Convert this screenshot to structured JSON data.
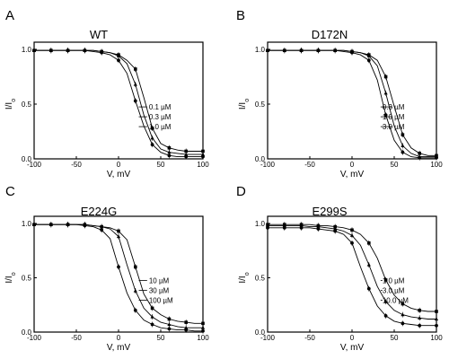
{
  "figure": {
    "panels": [
      {
        "letter": "A",
        "title": "WT",
        "ylabel": "I/I",
        "ylabel_sub": "o",
        "xlabel": "V, mV"
      },
      {
        "letter": "B",
        "title": "D172N",
        "ylabel": "I/I",
        "ylabel_sub": "o",
        "xlabel": "V, mV"
      },
      {
        "letter": "C",
        "title": "E224G",
        "ylabel": "I/I",
        "ylabel_sub": "o",
        "xlabel": "V, mV"
      },
      {
        "letter": "D",
        "title": "E299S",
        "ylabel": "I/I",
        "ylabel_sub": "o",
        "xlabel": "V, mV"
      }
    ]
  },
  "chart_data": [
    {
      "type": "line",
      "panel": "A",
      "title": "WT",
      "xlabel": "V, mV",
      "ylabel": "I/Io",
      "xlim": [
        -100,
        100
      ],
      "ylim": [
        0,
        1.0
      ],
      "xticks": [
        -100,
        -50,
        0,
        50,
        100
      ],
      "yticks": [
        0.0,
        0.5,
        1.0
      ],
      "legend": [
        "0.1 µM",
        "0.3 µM",
        "1.0 µM"
      ],
      "x": [
        -100,
        -90,
        -80,
        -70,
        -60,
        -50,
        -40,
        -30,
        -20,
        -10,
        0,
        10,
        20,
        30,
        40,
        50,
        60,
        70,
        80,
        90,
        100
      ],
      "series": [
        {
          "name": "0.1 µM",
          "values": [
            0.99,
            0.99,
            0.99,
            0.99,
            0.99,
            0.99,
            0.99,
            0.99,
            0.98,
            0.97,
            0.95,
            0.9,
            0.82,
            0.56,
            0.28,
            0.14,
            0.1,
            0.08,
            0.07,
            0.07,
            0.07
          ]
        },
        {
          "name": "0.3 µM",
          "values": [
            0.99,
            0.99,
            0.99,
            0.99,
            0.99,
            0.99,
            0.99,
            0.99,
            0.98,
            0.97,
            0.94,
            0.87,
            0.68,
            0.4,
            0.19,
            0.09,
            0.06,
            0.05,
            0.04,
            0.04,
            0.04
          ]
        },
        {
          "name": "1.0 µM",
          "values": [
            0.99,
            0.99,
            0.99,
            0.99,
            0.99,
            0.99,
            0.99,
            0.98,
            0.97,
            0.95,
            0.9,
            0.78,
            0.53,
            0.3,
            0.13,
            0.06,
            0.03,
            0.02,
            0.02,
            0.02,
            0.02
          ]
        }
      ]
    },
    {
      "type": "line",
      "panel": "B",
      "title": "D172N",
      "xlabel": "V, mV",
      "ylabel": "I/Io",
      "xlim": [
        -100,
        100
      ],
      "ylim": [
        0,
        1.0
      ],
      "xticks": [
        -100,
        -50,
        0,
        50,
        100
      ],
      "yticks": [
        0.0,
        0.5,
        1.0
      ],
      "legend": [
        "0.3 µM",
        "1.0 µM",
        "3.0 µM"
      ],
      "x": [
        -100,
        -90,
        -80,
        -70,
        -60,
        -50,
        -40,
        -30,
        -20,
        -10,
        0,
        10,
        20,
        30,
        40,
        50,
        60,
        70,
        80,
        90,
        100
      ],
      "series": [
        {
          "name": "0.3 µM",
          "values": [
            0.99,
            0.99,
            0.99,
            0.99,
            0.99,
            0.99,
            0.99,
            0.99,
            0.99,
            0.99,
            0.98,
            0.97,
            0.95,
            0.9,
            0.75,
            0.48,
            0.22,
            0.1,
            0.05,
            0.03,
            0.03
          ]
        },
        {
          "name": "1.0 µM",
          "values": [
            0.99,
            0.99,
            0.99,
            0.99,
            0.99,
            0.99,
            0.99,
            0.99,
            0.99,
            0.99,
            0.98,
            0.97,
            0.94,
            0.85,
            0.6,
            0.3,
            0.12,
            0.05,
            0.02,
            0.02,
            0.02
          ]
        },
        {
          "name": "3.0 µM",
          "values": [
            0.99,
            0.99,
            0.99,
            0.99,
            0.99,
            0.99,
            0.99,
            0.99,
            0.99,
            0.98,
            0.97,
            0.95,
            0.9,
            0.72,
            0.4,
            0.17,
            0.06,
            0.02,
            0.01,
            0.01,
            0.01
          ]
        }
      ]
    },
    {
      "type": "line",
      "panel": "C",
      "title": "E224G",
      "xlabel": "V, mV",
      "ylabel": "I/Io",
      "xlim": [
        -100,
        100
      ],
      "ylim": [
        0,
        1.0
      ],
      "xticks": [
        -100,
        -50,
        0,
        50,
        100
      ],
      "yticks": [
        0.0,
        0.5,
        1.0
      ],
      "legend": [
        "10 µM",
        "30 µM",
        "100 µM"
      ],
      "x": [
        -100,
        -90,
        -80,
        -70,
        -60,
        -50,
        -40,
        -30,
        -20,
        -10,
        0,
        10,
        20,
        30,
        40,
        50,
        60,
        70,
        80,
        90,
        100
      ],
      "series": [
        {
          "name": "10 µM",
          "values": [
            0.99,
            0.99,
            0.99,
            0.99,
            0.99,
            0.99,
            0.99,
            0.98,
            0.97,
            0.96,
            0.93,
            0.85,
            0.6,
            0.35,
            0.22,
            0.16,
            0.12,
            0.1,
            0.09,
            0.08,
            0.08
          ]
        },
        {
          "name": "30 µM",
          "values": [
            0.99,
            0.99,
            0.99,
            0.99,
            0.99,
            0.99,
            0.99,
            0.98,
            0.97,
            0.95,
            0.88,
            0.62,
            0.38,
            0.22,
            0.14,
            0.09,
            0.07,
            0.05,
            0.04,
            0.04,
            0.04
          ]
        },
        {
          "name": "100 µM",
          "values": [
            0.99,
            0.99,
            0.99,
            0.99,
            0.99,
            0.99,
            0.98,
            0.97,
            0.94,
            0.86,
            0.6,
            0.36,
            0.2,
            0.11,
            0.07,
            0.04,
            0.03,
            0.02,
            0.02,
            0.01,
            0.01
          ]
        }
      ]
    },
    {
      "type": "line",
      "panel": "D",
      "title": "E299S",
      "xlabel": "V, mV",
      "ylabel": "I/Io",
      "xlim": [
        -100,
        100
      ],
      "ylim": [
        0,
        1.0
      ],
      "xticks": [
        -100,
        -50,
        0,
        50,
        100
      ],
      "yticks": [
        0.0,
        0.5,
        1.0
      ],
      "legend": [
        "1.0 µM",
        "3.0 µM",
        "10.0 µM"
      ],
      "x": [
        -100,
        -90,
        -80,
        -70,
        -60,
        -50,
        -40,
        -30,
        -20,
        -10,
        0,
        10,
        20,
        30,
        40,
        50,
        60,
        70,
        80,
        90,
        100
      ],
      "series": [
        {
          "name": "1.0 µM",
          "values": [
            0.99,
            0.99,
            0.99,
            0.99,
            0.99,
            0.99,
            0.98,
            0.98,
            0.97,
            0.96,
            0.94,
            0.9,
            0.82,
            0.68,
            0.48,
            0.34,
            0.26,
            0.22,
            0.2,
            0.19,
            0.19
          ]
        },
        {
          "name": "3.0 µM",
          "values": [
            0.98,
            0.98,
            0.98,
            0.98,
            0.98,
            0.97,
            0.97,
            0.96,
            0.95,
            0.93,
            0.89,
            0.8,
            0.62,
            0.42,
            0.28,
            0.2,
            0.16,
            0.14,
            0.13,
            0.12,
            0.12
          ]
        },
        {
          "name": "10.0 µM",
          "values": [
            0.96,
            0.96,
            0.96,
            0.96,
            0.96,
            0.96,
            0.95,
            0.94,
            0.93,
            0.9,
            0.82,
            0.6,
            0.4,
            0.24,
            0.15,
            0.1,
            0.08,
            0.07,
            0.06,
            0.06,
            0.06
          ]
        }
      ]
    }
  ]
}
